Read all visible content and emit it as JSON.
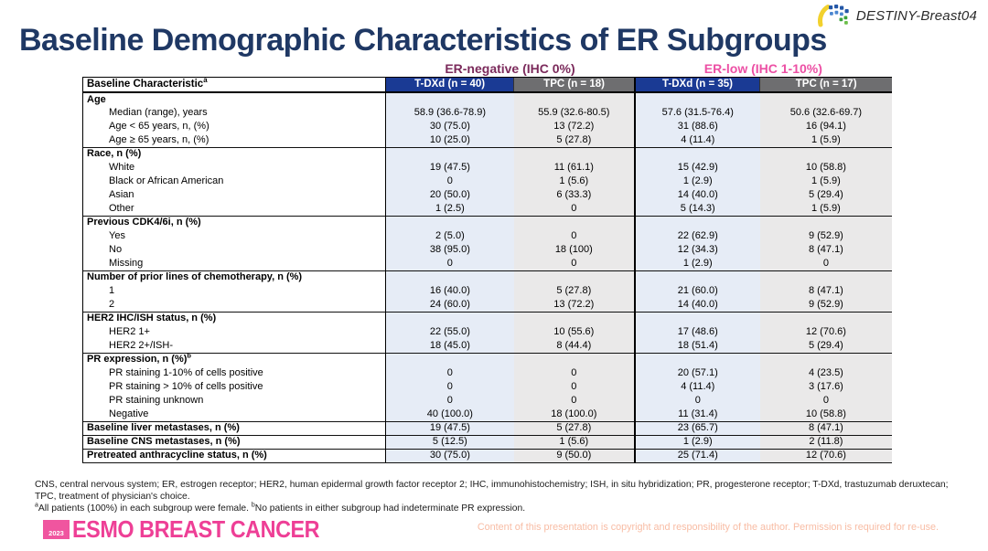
{
  "header": {
    "trial_logo": "DESTINY-Breast04",
    "title": "Baseline Demographic Characteristics of ER Subgroups"
  },
  "groups": [
    {
      "label": "ER-negative (IHC 0%)",
      "color": "#7B2A5B"
    },
    {
      "label": "ER-low (IHC 1-10%)",
      "color": "#EC4FA4"
    }
  ],
  "table": {
    "header_label": "Baseline Characteristic",
    "header_sup": "a",
    "col_headers": [
      "T-DXd (n = 40)",
      "TPC (n = 18)",
      "T-DXd (n = 35)",
      "TPC (n = 17)"
    ],
    "rows": [
      {
        "type": "section",
        "label": "Age",
        "values": [
          "",
          "",
          "",
          ""
        ]
      },
      {
        "type": "data",
        "indent": true,
        "label": "Median (range), years",
        "values": [
          "58.9 (36.6-78.9)",
          "55.9 (32.6-80.5)",
          "57.6 (31.5-76.4)",
          "50.6 (32.6-69.7)"
        ]
      },
      {
        "type": "data",
        "indent": true,
        "label": "Age < 65 years, n, (%)",
        "values": [
          "30 (75.0)",
          "13 (72.2)",
          "31 (88.6)",
          "16 (94.1)"
        ]
      },
      {
        "type": "data",
        "indent": true,
        "label": "Age ≥ 65 years, n, (%)",
        "values": [
          "10 (25.0)",
          "5 (27.8)",
          "4 (11.4)",
          "1 (5.9)"
        ]
      },
      {
        "type": "section",
        "label": "Race, n (%)",
        "values": [
          "",
          "",
          "",
          ""
        ]
      },
      {
        "type": "data",
        "indent": true,
        "label": "White",
        "values": [
          "19 (47.5)",
          "11 (61.1)",
          "15 (42.9)",
          "10 (58.8)"
        ]
      },
      {
        "type": "data",
        "indent": true,
        "label": "Black or African American",
        "values": [
          "0",
          "1 (5.6)",
          "1 (2.9)",
          "1 (5.9)"
        ]
      },
      {
        "type": "data",
        "indent": true,
        "label": "Asian",
        "values": [
          "20 (50.0)",
          "6 (33.3)",
          "14 (40.0)",
          "5 (29.4)"
        ]
      },
      {
        "type": "data",
        "indent": true,
        "label": "Other",
        "values": [
          "1 (2.5)",
          "0",
          "5 (14.3)",
          "1 (5.9)"
        ]
      },
      {
        "type": "section",
        "label": "Previous CDK4/6i, n (%)",
        "values": [
          "",
          "",
          "",
          ""
        ]
      },
      {
        "type": "data",
        "indent": true,
        "label": "Yes",
        "values": [
          "2 (5.0)",
          "0",
          "22 (62.9)",
          "9 (52.9)"
        ]
      },
      {
        "type": "data",
        "indent": true,
        "label": "No",
        "values": [
          "38 (95.0)",
          "18 (100)",
          "12 (34.3)",
          "8 (47.1)"
        ]
      },
      {
        "type": "data",
        "indent": true,
        "label": "Missing",
        "values": [
          "0",
          "0",
          "1 (2.9)",
          "0"
        ]
      },
      {
        "type": "section",
        "label": "Number of prior lines of chemotherapy, n (%)",
        "values": [
          "",
          "",
          "",
          ""
        ]
      },
      {
        "type": "data",
        "indent": true,
        "label": "1",
        "values": [
          "16 (40.0)",
          "5 (27.8)",
          "21 (60.0)",
          "8 (47.1)"
        ]
      },
      {
        "type": "data",
        "indent": true,
        "label": "2",
        "values": [
          "24 (60.0)",
          "13 (72.2)",
          "14 (40.0)",
          "9 (52.9)"
        ]
      },
      {
        "type": "section",
        "label": "HER2 IHC/ISH status, n (%)",
        "values": [
          "",
          "",
          "",
          ""
        ]
      },
      {
        "type": "data",
        "indent": true,
        "label": "HER2 1+",
        "values": [
          "22 (55.0)",
          "10 (55.6)",
          "17 (48.6)",
          "12 (70.6)"
        ]
      },
      {
        "type": "data",
        "indent": true,
        "label": "HER2 2+/ISH-",
        "values": [
          "18 (45.0)",
          "8 (44.4)",
          "18 (51.4)",
          "5 (29.4)"
        ]
      },
      {
        "type": "section",
        "label": "PR expression, n (%)",
        "sup": "b",
        "values": [
          "",
          "",
          "",
          ""
        ]
      },
      {
        "type": "data",
        "indent": true,
        "label": "PR staining 1-10% of cells positive",
        "values": [
          "0",
          "0",
          "20 (57.1)",
          "4 (23.5)"
        ]
      },
      {
        "type": "data",
        "indent": true,
        "label": "PR staining > 10% of cells positive",
        "values": [
          "0",
          "0",
          "4 (11.4)",
          "3 (17.6)"
        ]
      },
      {
        "type": "data",
        "indent": true,
        "label": "PR staining unknown",
        "values": [
          "0",
          "0",
          "0",
          "0"
        ]
      },
      {
        "type": "data",
        "indent": true,
        "label": "Negative",
        "values": [
          "40 (100.0)",
          "18 (100.0)",
          "11 (31.4)",
          "10 (58.8)"
        ]
      },
      {
        "type": "bold",
        "label": "Baseline liver metastases, n (%)",
        "values": [
          "19 (47.5)",
          "5 (27.8)",
          "23 (65.7)",
          "8 (47.1)"
        ]
      },
      {
        "type": "bold",
        "label": "Baseline CNS metastases, n (%)",
        "values": [
          "5 (12.5)",
          "1 (5.6)",
          "1 (2.9)",
          "2 (11.8)"
        ]
      },
      {
        "type": "bold",
        "label": "Pretreated anthracycline status, n (%)",
        "values": [
          "30 (75.0)",
          "9 (50.0)",
          "25 (71.4)",
          "12 (70.6)"
        ]
      }
    ]
  },
  "footnotes": {
    "abbreviations": "CNS, central nervous system; ER, estrogen receptor; HER2, human epidermal growth factor receptor 2; IHC, immunohistochemistry; ISH, in situ hybridization; PR, progesterone receptor; T-DXd, trastuzumab deruxtecan; TPC, treatment of physician's choice.",
    "notes": [
      {
        "sup": "a",
        "text": "All patients (100%) in each subgroup were female. "
      },
      {
        "sup": "b",
        "text": "No patients in either subgroup had indeterminate PR expression."
      }
    ]
  },
  "footer": {
    "esmo_year": "2023",
    "esmo_name": "ESMO BREAST CANCER",
    "copyright": "Content of this presentation is copyright and responsibility of the author. Permission is required for re-use."
  },
  "colors": {
    "title": "#1F3864",
    "tdxd_header_bg": "#1A3A94",
    "tpc_header_bg": "#6E6E70",
    "tdxd_cell_bg": "#E6ECF6",
    "tpc_cell_bg": "#EAE9E9",
    "er_negative": "#7B2A5B",
    "er_low": "#EC4FA4",
    "esmo_pink": "#EE3F96",
    "copyright_text": "#F8BCA4"
  }
}
